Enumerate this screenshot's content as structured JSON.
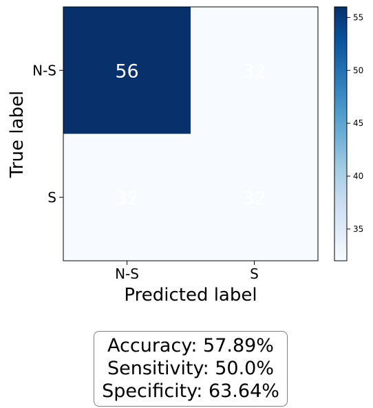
{
  "chart_data": {
    "type": "heatmap",
    "title": "",
    "xlabel": "Predicted label",
    "ylabel": "True label",
    "x_categories": [
      "N-S",
      "S"
    ],
    "y_categories": [
      "N-S",
      "S"
    ],
    "matrix": [
      [
        56,
        32
      ],
      [
        32,
        32
      ]
    ],
    "cell_labels": [
      [
        "56",
        "32"
      ],
      [
        "32",
        "32"
      ]
    ],
    "colormap": "Blues",
    "colorbar": {
      "vmin": 32,
      "vmax": 56,
      "ticks": [
        35,
        40,
        45,
        50,
        55
      ],
      "tick_labels": [
        "35",
        "40",
        "45",
        "50",
        "55"
      ]
    },
    "grid": false
  },
  "metrics": {
    "accuracy": "Accuracy: 57.89%",
    "sensitivity": "Sensitivity: 50.0%",
    "specificity": "Specificity: 63.64%"
  },
  "colors": {
    "low": "#f7fbff",
    "high": "#08306b",
    "cell_text": "#ffffff"
  }
}
